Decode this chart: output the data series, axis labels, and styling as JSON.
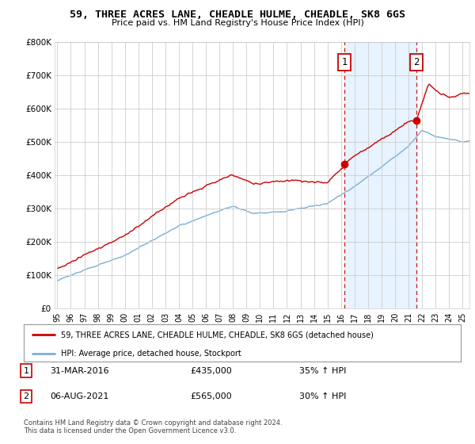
{
  "title1": "59, THREE ACRES LANE, CHEADLE HULME, CHEADLE, SK8 6GS",
  "title2": "Price paid vs. HM Land Registry's House Price Index (HPI)",
  "red_line_label": "59, THREE ACRES LANE, CHEADLE HULME, CHEADLE, SK8 6GS (detached house)",
  "blue_line_label": "HPI: Average price, detached house, Stockport",
  "footer1": "Contains HM Land Registry data © Crown copyright and database right 2024.",
  "footer2": "This data is licensed under the Open Government Licence v3.0.",
  "annotation1": {
    "num": "1",
    "date": "31-MAR-2016",
    "price": "£435,000",
    "hpi": "35% ↑ HPI"
  },
  "annotation2": {
    "num": "2",
    "date": "06-AUG-2021",
    "price": "£565,000",
    "hpi": "30% ↑ HPI"
  },
  "vline1_x": 2016.25,
  "vline2_x": 2021.58,
  "sale1_hpi_y": 435000,
  "sale2_hpi_y": 565000,
  "ylim": [
    0,
    800000
  ],
  "xlim_start": 1994.8,
  "xlim_end": 2025.5,
  "red_color": "#CC0000",
  "blue_color": "#7BAFD4",
  "vline_color": "#CC0000",
  "grid_color": "#CCCCCC",
  "shaded_color": "#DDEEFF",
  "background_color": "#FFFFFF",
  "plot_bg_color": "#FFFFFF"
}
